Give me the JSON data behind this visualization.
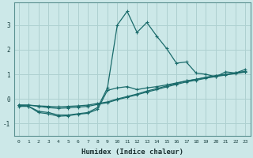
{
  "xlabel": "Humidex (Indice chaleur)",
  "background_color": "#cce8e8",
  "grid_color": "#aed0d0",
  "line_color": "#1a6b6b",
  "xlim": [
    -0.5,
    23.5
  ],
  "ylim": [
    -1.5,
    3.9
  ],
  "yticks": [
    -1,
    0,
    1,
    2,
    3
  ],
  "xticks": [
    0,
    1,
    2,
    3,
    4,
    5,
    6,
    7,
    8,
    9,
    10,
    11,
    12,
    13,
    14,
    15,
    16,
    17,
    18,
    19,
    20,
    21,
    22,
    23
  ],
  "lines": [
    {
      "x": [
        0,
        1,
        2,
        3,
        4,
        5,
        6,
        7,
        8,
        9,
        10,
        11,
        12,
        13,
        14,
        15,
        16,
        17,
        18,
        19,
        20,
        21,
        22,
        23
      ],
      "y": [
        -0.25,
        -0.3,
        -0.5,
        -0.55,
        -0.65,
        -0.65,
        -0.6,
        -0.55,
        -0.35,
        0.45,
        3.0,
        3.55,
        2.7,
        3.1,
        2.55,
        2.05,
        1.45,
        1.5,
        1.05,
        1.0,
        0.9,
        1.1,
        1.05,
        1.2
      ],
      "marker": true
    },
    {
      "x": [
        0,
        1,
        2,
        3,
        4,
        5,
        6,
        7,
        8,
        9,
        10,
        11,
        12,
        13,
        14,
        15,
        16,
        17,
        18,
        19,
        20,
        21,
        22,
        23
      ],
      "y": [
        -0.25,
        -0.25,
        -0.28,
        -0.3,
        -0.32,
        -0.3,
        -0.28,
        -0.25,
        -0.18,
        -0.12,
        0.0,
        0.1,
        0.2,
        0.32,
        0.42,
        0.53,
        0.63,
        0.73,
        0.8,
        0.88,
        0.95,
        1.0,
        1.06,
        1.12
      ],
      "marker": true
    },
    {
      "x": [
        0,
        1,
        2,
        3,
        4,
        5,
        6,
        7,
        8,
        9,
        10,
        11,
        12,
        13,
        14,
        15,
        16,
        17,
        18,
        19,
        20,
        21,
        22,
        23
      ],
      "y": [
        -0.25,
        -0.25,
        -0.3,
        -0.35,
        -0.38,
        -0.36,
        -0.33,
        -0.3,
        -0.22,
        -0.15,
        -0.03,
        0.07,
        0.17,
        0.28,
        0.38,
        0.49,
        0.59,
        0.69,
        0.76,
        0.84,
        0.91,
        0.97,
        1.03,
        1.09
      ],
      "marker": true
    },
    {
      "x": [
        0,
        1,
        2,
        3,
        4,
        5,
        6,
        7,
        8,
        9,
        10,
        11,
        12,
        13,
        14,
        15,
        16,
        17,
        18,
        19,
        20,
        21,
        22,
        23
      ],
      "y": [
        -0.3,
        -0.3,
        -0.55,
        -0.6,
        -0.7,
        -0.68,
        -0.62,
        -0.58,
        -0.42,
        0.35,
        0.45,
        0.5,
        0.38,
        0.45,
        0.5,
        0.57,
        0.65,
        0.73,
        0.79,
        0.87,
        0.93,
        0.99,
        1.05,
        1.11
      ],
      "marker": true
    }
  ]
}
